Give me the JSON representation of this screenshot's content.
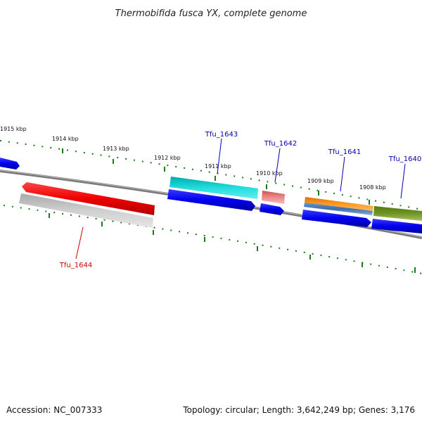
{
  "title": "Thermobifida fusca YX, complete genome",
  "footer": {
    "accession": "Accession: NC_007333",
    "summary": "Topology: circular; Length: 3,642,249 bp; Genes: 3,176"
  },
  "ruler": {
    "unit": "kbp",
    "tick_color": "#1a7a1a",
    "labels": [
      "1915 kbp",
      "1914 kbp",
      "1913 kbp",
      "1912 kbp",
      "1911 kbp",
      "1910 kbp",
      "1909 kbp",
      "1908 kbp"
    ]
  },
  "genes": [
    {
      "name": "Tfu_1644",
      "strand": "-",
      "label_color": "#cc0000"
    },
    {
      "name": "Tfu_1643",
      "strand": "+",
      "label_color": "#0000aa"
    },
    {
      "name": "Tfu_1642",
      "strand": "+",
      "label_color": "#0000aa"
    },
    {
      "name": "Tfu_1641",
      "strand": "+",
      "label_color": "#0000aa"
    },
    {
      "name": "Tfu_1640",
      "strand": "+",
      "label_color": "#0000aa"
    }
  ],
  "colors": {
    "backbone": "#7a7a7a",
    "cds": "#1010e0",
    "red_feature": "#ee1111",
    "gray_feature": "#b8b8b8",
    "cyan_feature": "#11cccc",
    "pink_feature": "#ee8888",
    "orange_feature": "#f08a10",
    "steel_feature": "#4a7ab8",
    "olive_feature": "#6a8a20"
  }
}
